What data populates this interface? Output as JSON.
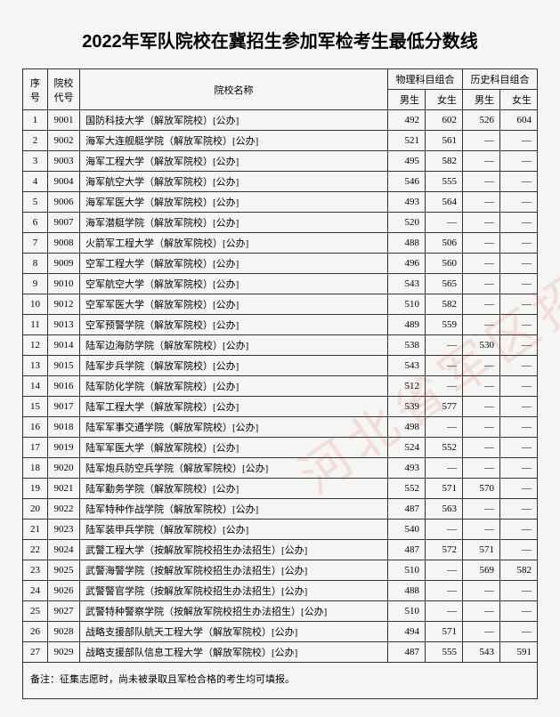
{
  "title": "2022年军队院校在冀招生参加军检考生最低分数线",
  "watermark": "河北省军区招生办",
  "headers": {
    "seq": "序号",
    "code": "院校代号",
    "name": "院校名称",
    "physics": "物理科目组合",
    "history": "历史科目组合",
    "male": "男生",
    "female": "女生"
  },
  "rows": [
    {
      "seq": "1",
      "code": "9001",
      "name": "国防科技大学（解放军院校）[公办]",
      "pm": "492",
      "pf": "602",
      "hm": "526",
      "hf": "604"
    },
    {
      "seq": "2",
      "code": "9002",
      "name": "海军大连舰艇学院（解放军院校）[公办]",
      "pm": "521",
      "pf": "561",
      "hm": "—",
      "hf": "—"
    },
    {
      "seq": "3",
      "code": "9003",
      "name": "海军工程大学（解放军院校）[公办]",
      "pm": "495",
      "pf": "582",
      "hm": "—",
      "hf": "—"
    },
    {
      "seq": "4",
      "code": "9004",
      "name": "海军航空大学（解放军院校）[公办]",
      "pm": "546",
      "pf": "555",
      "hm": "—",
      "hf": "—"
    },
    {
      "seq": "5",
      "code": "9006",
      "name": "海军军医大学（解放军院校）[公办]",
      "pm": "493",
      "pf": "564",
      "hm": "—",
      "hf": "—"
    },
    {
      "seq": "6",
      "code": "9007",
      "name": "海军潜艇学院（解放军院校）[公办]",
      "pm": "520",
      "pf": "—",
      "hm": "—",
      "hf": "—"
    },
    {
      "seq": "7",
      "code": "9008",
      "name": "火箭军工程大学（解放军院校）[公办]",
      "pm": "488",
      "pf": "506",
      "hm": "—",
      "hf": "—"
    },
    {
      "seq": "8",
      "code": "9009",
      "name": "空军工程大学（解放军院校）[公办]",
      "pm": "496",
      "pf": "560",
      "hm": "—",
      "hf": "—"
    },
    {
      "seq": "9",
      "code": "9010",
      "name": "空军航空大学（解放军院校）[公办]",
      "pm": "543",
      "pf": "565",
      "hm": "—",
      "hf": "—"
    },
    {
      "seq": "10",
      "code": "9012",
      "name": "空军军医大学（解放军院校）[公办]",
      "pm": "510",
      "pf": "582",
      "hm": "—",
      "hf": "—"
    },
    {
      "seq": "11",
      "code": "9013",
      "name": "空军预警学院（解放军院校）[公办]",
      "pm": "489",
      "pf": "559",
      "hm": "—",
      "hf": "—"
    },
    {
      "seq": "12",
      "code": "9014",
      "name": "陆军边海防学院（解放军院校）[公办]",
      "pm": "538",
      "pf": "—",
      "hm": "530",
      "hf": "—"
    },
    {
      "seq": "13",
      "code": "9015",
      "name": "陆军步兵学院（解放军院校）[公办]",
      "pm": "543",
      "pf": "—",
      "hm": "—",
      "hf": "—"
    },
    {
      "seq": "14",
      "code": "9016",
      "name": "陆军防化学院（解放军院校）[公办]",
      "pm": "512",
      "pf": "—",
      "hm": "—",
      "hf": "—"
    },
    {
      "seq": "15",
      "code": "9017",
      "name": "陆军工程大学（解放军院校）[公办]",
      "pm": "539",
      "pf": "577",
      "hm": "—",
      "hf": "—"
    },
    {
      "seq": "16",
      "code": "9018",
      "name": "陆军军事交通学院（解放军院校）[公办]",
      "pm": "498",
      "pf": "—",
      "hm": "—",
      "hf": "—"
    },
    {
      "seq": "17",
      "code": "9019",
      "name": "陆军军医大学（解放军院校）[公办]",
      "pm": "524",
      "pf": "552",
      "hm": "—",
      "hf": "—"
    },
    {
      "seq": "18",
      "code": "9020",
      "name": "陆军炮兵防空兵学院（解放军院校）[公办]",
      "pm": "493",
      "pf": "—",
      "hm": "—",
      "hf": "—"
    },
    {
      "seq": "19",
      "code": "9021",
      "name": "陆军勤务学院（解放军院校）[公办]",
      "pm": "552",
      "pf": "571",
      "hm": "570",
      "hf": "—"
    },
    {
      "seq": "20",
      "code": "9022",
      "name": "陆军特种作战学院（解放军院校）[公办]",
      "pm": "487",
      "pf": "563",
      "hm": "—",
      "hf": "—"
    },
    {
      "seq": "21",
      "code": "9023",
      "name": "陆军装甲兵学院（解放军院校）[公办]",
      "pm": "540",
      "pf": "—",
      "hm": "—",
      "hf": "—"
    },
    {
      "seq": "22",
      "code": "9024",
      "name": "武警工程大学（按解放军院校招生办法招生）[公办]",
      "pm": "487",
      "pf": "572",
      "hm": "571",
      "hf": "—"
    },
    {
      "seq": "23",
      "code": "9025",
      "name": "武警海警学院（按解放军院校招生办法招生）[公办]",
      "pm": "510",
      "pf": "—",
      "hm": "569",
      "hf": "582"
    },
    {
      "seq": "24",
      "code": "9026",
      "name": "武警警官学院（按解放军院校招生办法招生）[公办]",
      "pm": "488",
      "pf": "—",
      "hm": "—",
      "hf": "—"
    },
    {
      "seq": "25",
      "code": "9027",
      "name": "武警特种警察学院（按解放军院校招生办法招生）[公办]",
      "pm": "510",
      "pf": "—",
      "hm": "—",
      "hf": "—"
    },
    {
      "seq": "26",
      "code": "9028",
      "name": "战略支援部队航天工程大学（解放军院校）[公办]",
      "pm": "494",
      "pf": "571",
      "hm": "—",
      "hf": "—"
    },
    {
      "seq": "27",
      "code": "9029",
      "name": "战略支援部队信息工程大学（解放军院校）[公办]",
      "pm": "487",
      "pf": "555",
      "hm": "543",
      "hf": "591"
    }
  ],
  "footer": "备注：征集志愿时，尚未被录取且军检合格的考生均可填报。",
  "styling": {
    "page_bg": "#f5f5f3",
    "border_color": "#333333",
    "title_fontsize": 20,
    "cell_fontsize": 11,
    "watermark_color": "rgba(220,50,50,0.12)"
  }
}
